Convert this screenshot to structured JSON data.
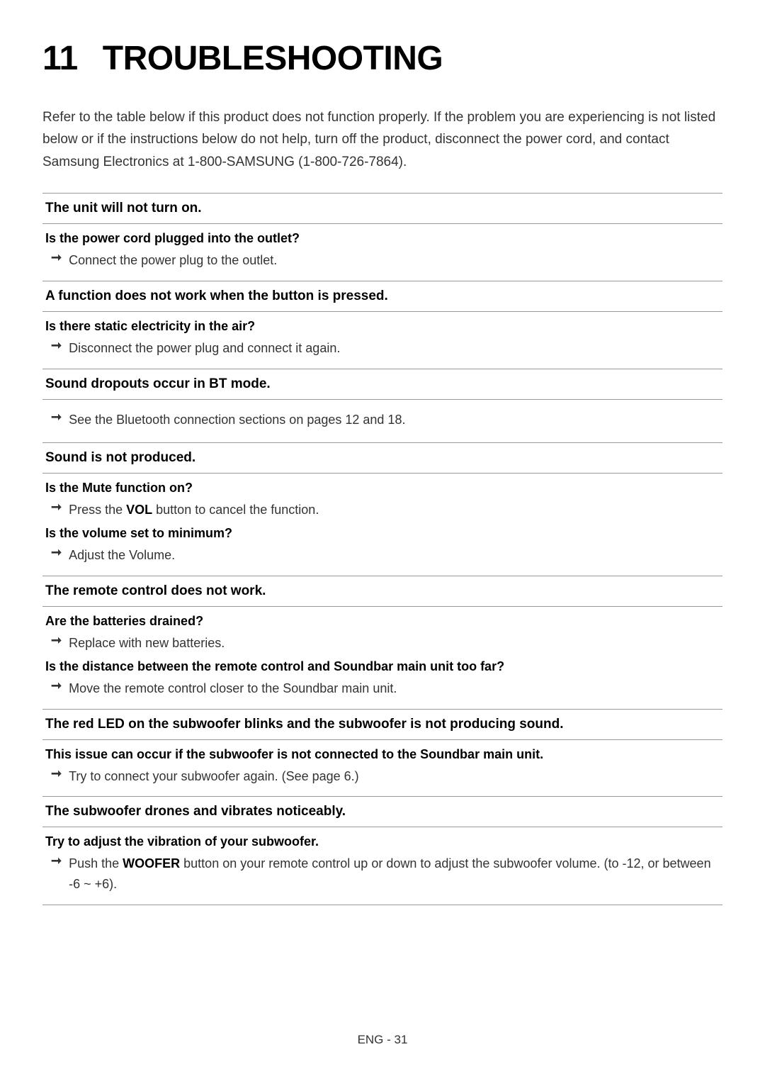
{
  "chapter_number": "11",
  "chapter_title": "TROUBLESHOOTING",
  "intro": "Refer to the table below if this product does not function properly. If the problem you are experiencing is not listed below or if the instructions below do not help, turn off the product, disconnect the power cord, and contact Samsung Electronics at 1-800-SAMSUNG (1-800-726-7864).",
  "sections": [
    {
      "header": "The unit will not turn on.",
      "items": [
        {
          "question": "Is the power cord plugged into the outlet?",
          "answer": "Connect the power plug to the outlet."
        }
      ]
    },
    {
      "header": "A function does not work when the button is pressed.",
      "items": [
        {
          "question": "Is there static electricity in the air?",
          "answer": "Disconnect the power plug and connect it again."
        }
      ]
    },
    {
      "header": "Sound dropouts occur in BT mode.",
      "items": [
        {
          "question": "",
          "answer": "See the Bluetooth connection sections on pages 12 and 18."
        }
      ]
    },
    {
      "header": "Sound is not produced.",
      "items": [
        {
          "question": "Is the Mute function on?",
          "answer_prefix": "Press the ",
          "answer_bold": "VOL",
          "answer_suffix": " button to cancel the function."
        },
        {
          "question": "Is the volume set to minimum?",
          "answer": "Adjust the Volume."
        }
      ]
    },
    {
      "header": "The remote control does not work.",
      "items": [
        {
          "question": "Are the batteries drained?",
          "answer": "Replace with new batteries."
        },
        {
          "question": "Is the distance between the remote control and Soundbar main unit too far?",
          "answer": "Move the remote control closer to the Soundbar main unit."
        }
      ]
    },
    {
      "header": "The red LED on the subwoofer blinks and the subwoofer is not producing sound.",
      "items": [
        {
          "question": "This issue can occur if the subwoofer is not connected to the Soundbar main unit.",
          "answer": "Try to connect your subwoofer again. (See page 6.)"
        }
      ]
    },
    {
      "header": "The subwoofer drones and vibrates noticeably.",
      "items": [
        {
          "question": "Try to adjust the vibration of your subwoofer.",
          "answer_prefix": "Push the ",
          "answer_bold": "WOOFER",
          "answer_suffix": " button on your remote control up or down to adjust the subwoofer volume. (to -12, or between -6 ~ +6)."
        }
      ]
    }
  ],
  "footer": "ENG - 31",
  "arrow_glyph": "➞"
}
